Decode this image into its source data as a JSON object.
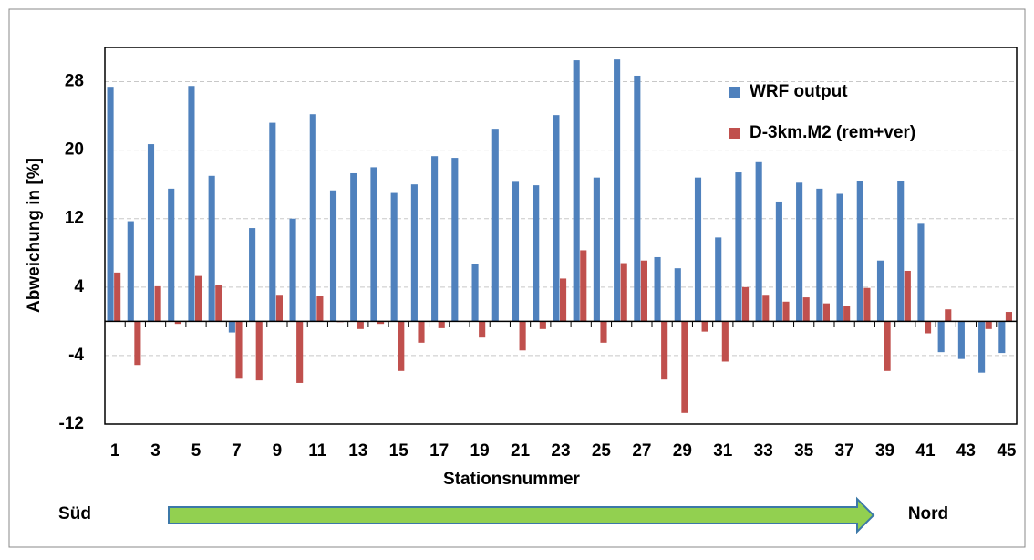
{
  "chart_data": {
    "type": "bar",
    "categories": [
      "1",
      null,
      "3",
      null,
      "5",
      null,
      "7",
      null,
      "9",
      null,
      "11",
      null,
      "13",
      null,
      "15",
      null,
      "17",
      null,
      "19",
      null,
      "21",
      null,
      "23",
      null,
      "25",
      null,
      "27",
      null,
      "29",
      null,
      "31",
      null,
      "33",
      null,
      "35",
      null,
      "37",
      null,
      "39",
      null,
      "41",
      null,
      "43",
      null,
      "45"
    ],
    "series": [
      {
        "name": "WRF output",
        "color": "#4f81bd",
        "values": [
          27.4,
          11.7,
          20.7,
          15.5,
          27.5,
          17,
          -1.3,
          10.9,
          23.2,
          12,
          24.2,
          15.3,
          17.3,
          18,
          15,
          16,
          19.3,
          19.1,
          6.7,
          22.5,
          16.3,
          15.9,
          24.1,
          30.5,
          16.8,
          30.6,
          28.7,
          7.5,
          6.2,
          16.8,
          9.8,
          17.4,
          18.6,
          14,
          16.2,
          15.5,
          14.9,
          16.4,
          7.1,
          16.4,
          11.4,
          -3.6,
          -4.4,
          -6,
          -3.7
        ]
      },
      {
        "name": "D-3km.M2 (rem+ver)",
        "color": "#c0504d",
        "values": [
          5.7,
          -5.1,
          4.1,
          -0.3,
          5.3,
          4.3,
          -6.6,
          -6.9,
          3.1,
          -7.2,
          3,
          -0.1,
          -0.9,
          -0.3,
          -5.8,
          -2.5,
          -0.8,
          0,
          -1.9,
          0,
          -3.4,
          -0.9,
          5,
          8.3,
          -2.5,
          6.8,
          7.1,
          -6.8,
          -10.7,
          -1.2,
          -4.7,
          4,
          3.1,
          2.3,
          2.8,
          2.1,
          1.8,
          3.9,
          -5.8,
          5.9,
          -1.4,
          1.4,
          0,
          -0.9,
          1.1
        ]
      }
    ],
    "x_label": "Stationsnummer",
    "y_label": "Abweichung in [%]",
    "ylim": [
      -12,
      32
    ],
    "yticks": [
      -12,
      -4,
      4,
      12,
      20,
      28
    ],
    "grid": true,
    "legend": "upper right",
    "arrow_start": "Süd",
    "arrow_end": "Nord"
  }
}
